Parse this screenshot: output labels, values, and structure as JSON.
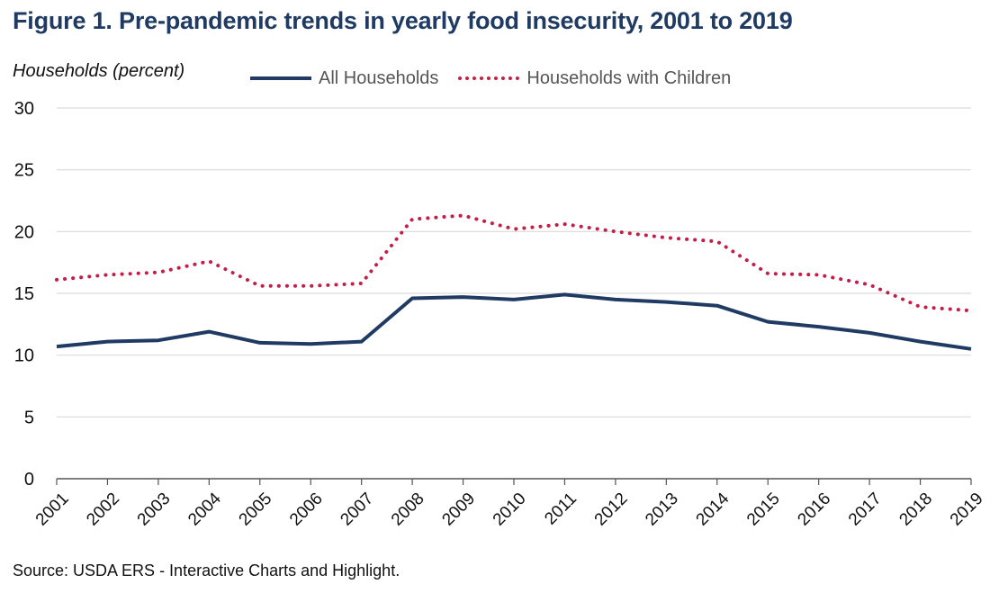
{
  "chart_data": {
    "type": "line",
    "title": "Figure 1. Pre-pandemic trends in yearly food insecurity, 2001 to 2019",
    "ylabel": "Households (percent)",
    "xlabel": "",
    "source": "Source: USDA ERS - Interactive Charts and Highlight.",
    "categories": [
      "2001",
      "2002",
      "2003",
      "2004",
      "2005",
      "2006",
      "2007",
      "2008",
      "2009",
      "2010",
      "2011",
      "2012",
      "2013",
      "2014",
      "2015",
      "2016",
      "2017",
      "2018",
      "2019"
    ],
    "ylim": [
      0,
      30
    ],
    "yticks": [
      "0",
      "5",
      "10",
      "15",
      "20",
      "25",
      "30"
    ],
    "grid": true,
    "legend_position": "top",
    "series": [
      {
        "name": "All Households",
        "style": "solid",
        "color": "#1f3b63",
        "values": [
          10.7,
          11.1,
          11.2,
          11.9,
          11.0,
          10.9,
          11.1,
          14.6,
          14.7,
          14.5,
          14.9,
          14.5,
          14.3,
          14.0,
          12.7,
          12.3,
          11.8,
          11.1,
          10.5
        ]
      },
      {
        "name": "Households with Children",
        "style": "dotted",
        "color": "#c41e47",
        "values": [
          16.1,
          16.5,
          16.7,
          17.6,
          15.6,
          15.6,
          15.8,
          21.0,
          21.3,
          20.2,
          20.6,
          20.0,
          19.5,
          19.2,
          16.6,
          16.5,
          15.7,
          13.9,
          13.6
        ]
      }
    ]
  }
}
